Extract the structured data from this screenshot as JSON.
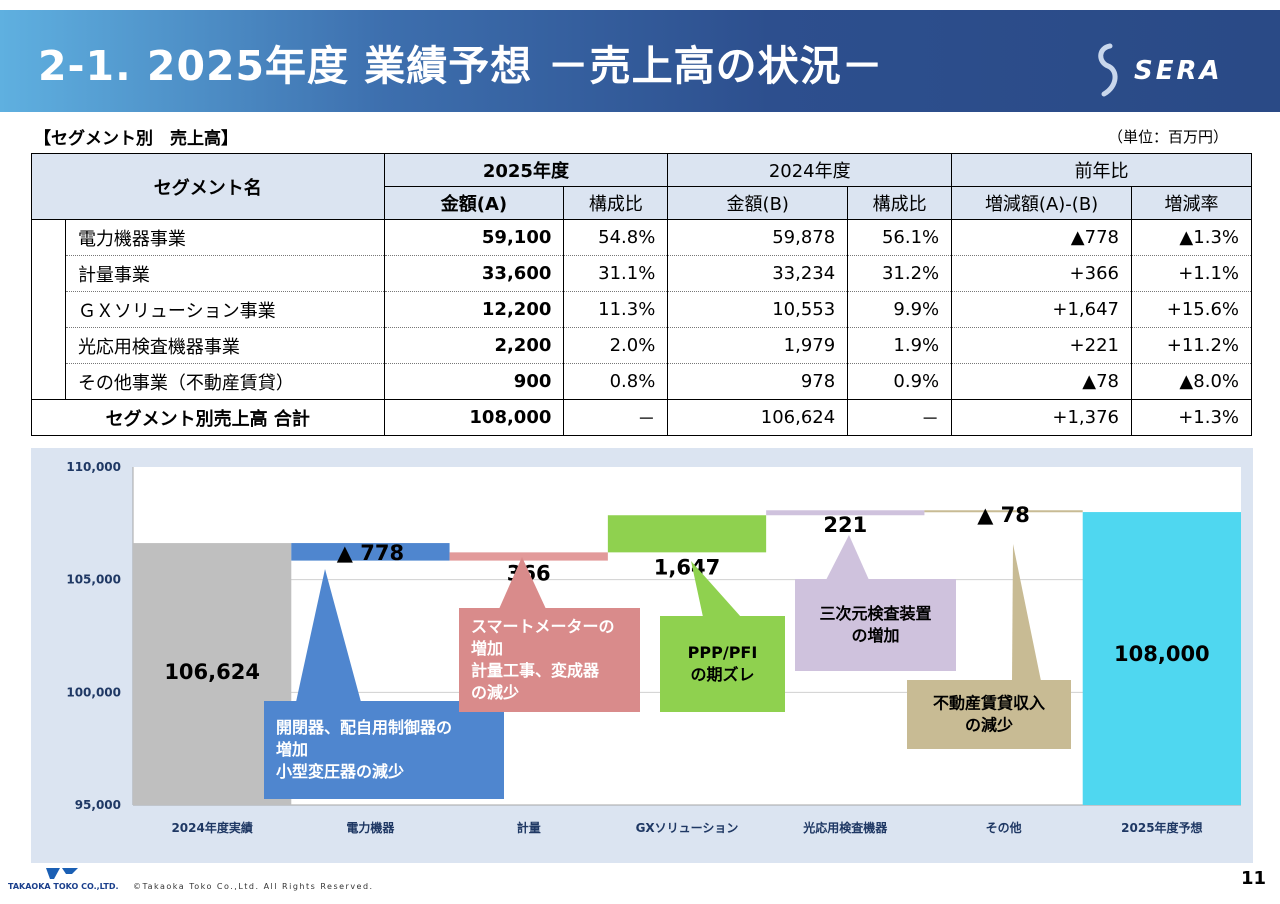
{
  "header": {
    "title": "2-1. 2025年度 業績予想 －売上高の状況－",
    "logo_text": "SERA"
  },
  "section": {
    "title": "【セグメント別　売上高】",
    "unit": "（単位：百万円）"
  },
  "table": {
    "col_segment": "セグメント名",
    "group_2025": "2025年度",
    "group_2024": "2024年度",
    "group_yoy": "前年比",
    "sub_amount_a": "金額(A)",
    "sub_share_a": "構成比",
    "sub_amount_b": "金額(B)",
    "sub_share_b": "構成比",
    "sub_diff": "増減額(A)-(B)",
    "sub_rate": "増減率",
    "rows": [
      {
        "name": "電力機器事業",
        "amount_a": "59,100",
        "share_a": "54.8%",
        "amount_b": "59,878",
        "share_b": "56.1%",
        "diff": "▲778",
        "rate": "▲1.3%"
      },
      {
        "name": "計量事業",
        "amount_a": "33,600",
        "share_a": "31.1%",
        "amount_b": "33,234",
        "share_b": "31.2%",
        "diff": "+366",
        "rate": "+1.1%"
      },
      {
        "name": "ＧＸソリューション事業",
        "amount_a": "12,200",
        "share_a": "11.3%",
        "amount_b": "10,553",
        "share_b": "9.9%",
        "diff": "+1,647",
        "rate": "+15.6%"
      },
      {
        "name": "光応用検査機器事業",
        "amount_a": "2,200",
        "share_a": "2.0%",
        "amount_b": "1,979",
        "share_b": "1.9%",
        "diff": "+221",
        "rate": "+11.2%"
      },
      {
        "name": "その他事業（不動産賃貸）",
        "amount_a": "900",
        "share_a": "0.8%",
        "amount_b": "978",
        "share_b": "0.9%",
        "diff": "▲78",
        "rate": "▲8.0%"
      }
    ],
    "total": {
      "name": "セグメント別売上高 合計",
      "amount_a": "108,000",
      "share_a": "－",
      "amount_b": "106,624",
      "share_b": "－",
      "diff": "+1,376",
      "rate": "+1.3%"
    }
  },
  "chart_data": {
    "type": "bar",
    "subtype": "waterfall",
    "categories": [
      "2024年度実績",
      "電力機器",
      "計量",
      "GXソリューション",
      "光応用検査機器",
      "その他",
      "2025年度予想"
    ],
    "values": [
      106624,
      -778,
      366,
      1647,
      221,
      -78,
      108000
    ],
    "bar_kind": [
      "total",
      "delta",
      "delta",
      "delta",
      "delta",
      "delta",
      "total"
    ],
    "value_labels": [
      "106,624",
      "▲ 778",
      "366",
      "1,647",
      "221",
      "▲ 78",
      "108,000"
    ],
    "colors": [
      "#bfbfbf",
      "#4f86cf",
      "#e29a9a",
      "#8fd14f",
      "#cfc2dd",
      "#c8bb94",
      "#4fd7f0"
    ],
    "ylim": [
      95000,
      110000
    ],
    "yticks": [
      95000,
      100000,
      105000,
      110000
    ],
    "ytick_labels": [
      "95,000",
      "100,000",
      "105,000",
      "110,000"
    ],
    "grid": true,
    "annotations": [
      {
        "category": "電力機器",
        "lines": [
          "開閉器、配自用制御器の",
          "増加",
          "小型変圧器の減少"
        ],
        "color": "#4f86cf",
        "text_color": "#ffffff"
      },
      {
        "category": "計量",
        "lines": [
          "スマートメーターの",
          "増加",
          "計量工事、変成器",
          "の減少"
        ],
        "color": "#d98b8b",
        "text_color": "#ffffff"
      },
      {
        "category": "GXソリューション",
        "lines": [
          "PPP/PFI",
          "の期ズレ"
        ],
        "color": "#8fd14f",
        "text_color": "#000000"
      },
      {
        "category": "光応用検査機器",
        "lines": [
          "三次元検査装置",
          "の増加"
        ],
        "color": "#cfc2dd",
        "text_color": "#000000"
      },
      {
        "category": "その他",
        "lines": [
          "不動産賃貸収入",
          "の減少"
        ],
        "color": "#c8bb94",
        "text_color": "#000000"
      }
    ]
  },
  "footer": {
    "company": "TAKAOKA TOKO CO.,LTD.",
    "copyright": "©Takaoka Toko Co.,Ltd. All Rights Reserved.",
    "page": "11"
  }
}
